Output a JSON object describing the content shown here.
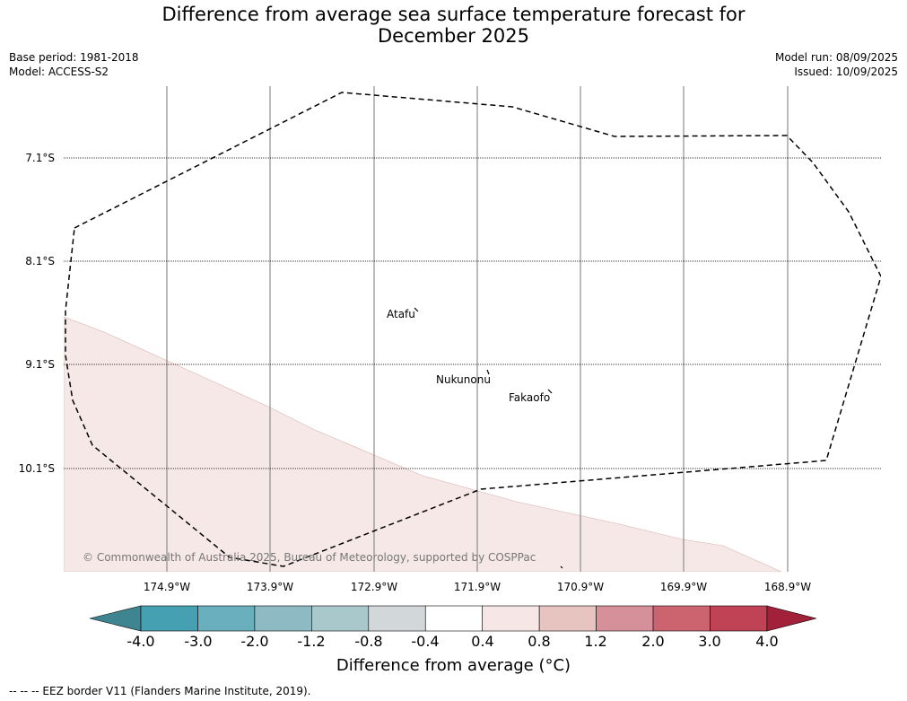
{
  "title_line1": "Difference from average sea surface temperature forecast for",
  "title_line2": "December 2025",
  "meta_left": [
    "Base period: 1981-2018",
    "Model: ACCESS-S2"
  ],
  "meta_right": [
    "Model run: 08/09/2025",
    "Issued: 10/09/2025"
  ],
  "latitudes": [
    "7.1°S",
    "8.1°S",
    "9.1°S",
    "10.1°S"
  ],
  "longitudes": [
    "174.9°W",
    "173.9°W",
    "172.9°W",
    "171.9°W",
    "170.9°W",
    "169.9°W",
    "168.9°W"
  ],
  "islands": [
    "Atafu",
    "Nukunonu",
    "Fakaofo"
  ],
  "copyright": "© Commonwealth of Australia 2025, Bureau of Meteorology, supported by COSPPac",
  "colorbar": {
    "ticks": [
      "-4.0",
      "-3.0",
      "-2.0",
      "-1.2",
      "-0.8",
      "-0.4",
      "0.4",
      "0.8",
      "1.2",
      "2.0",
      "3.0",
      "4.0"
    ],
    "colors": [
      "#3f8591",
      "#45a1b2",
      "#6aafbd",
      "#8dbac3",
      "#a9c8cc",
      "#d2d7d9",
      "#ffffff",
      "#f6e7e6",
      "#e7c4c0",
      "#d6909a",
      "#cc6470",
      "#c04355",
      "#a3203b"
    ],
    "label": "Difference from average (°C)"
  },
  "footer": "--  --  -- EEZ border V11 (Flanders Marine Institute, 2019)."
}
